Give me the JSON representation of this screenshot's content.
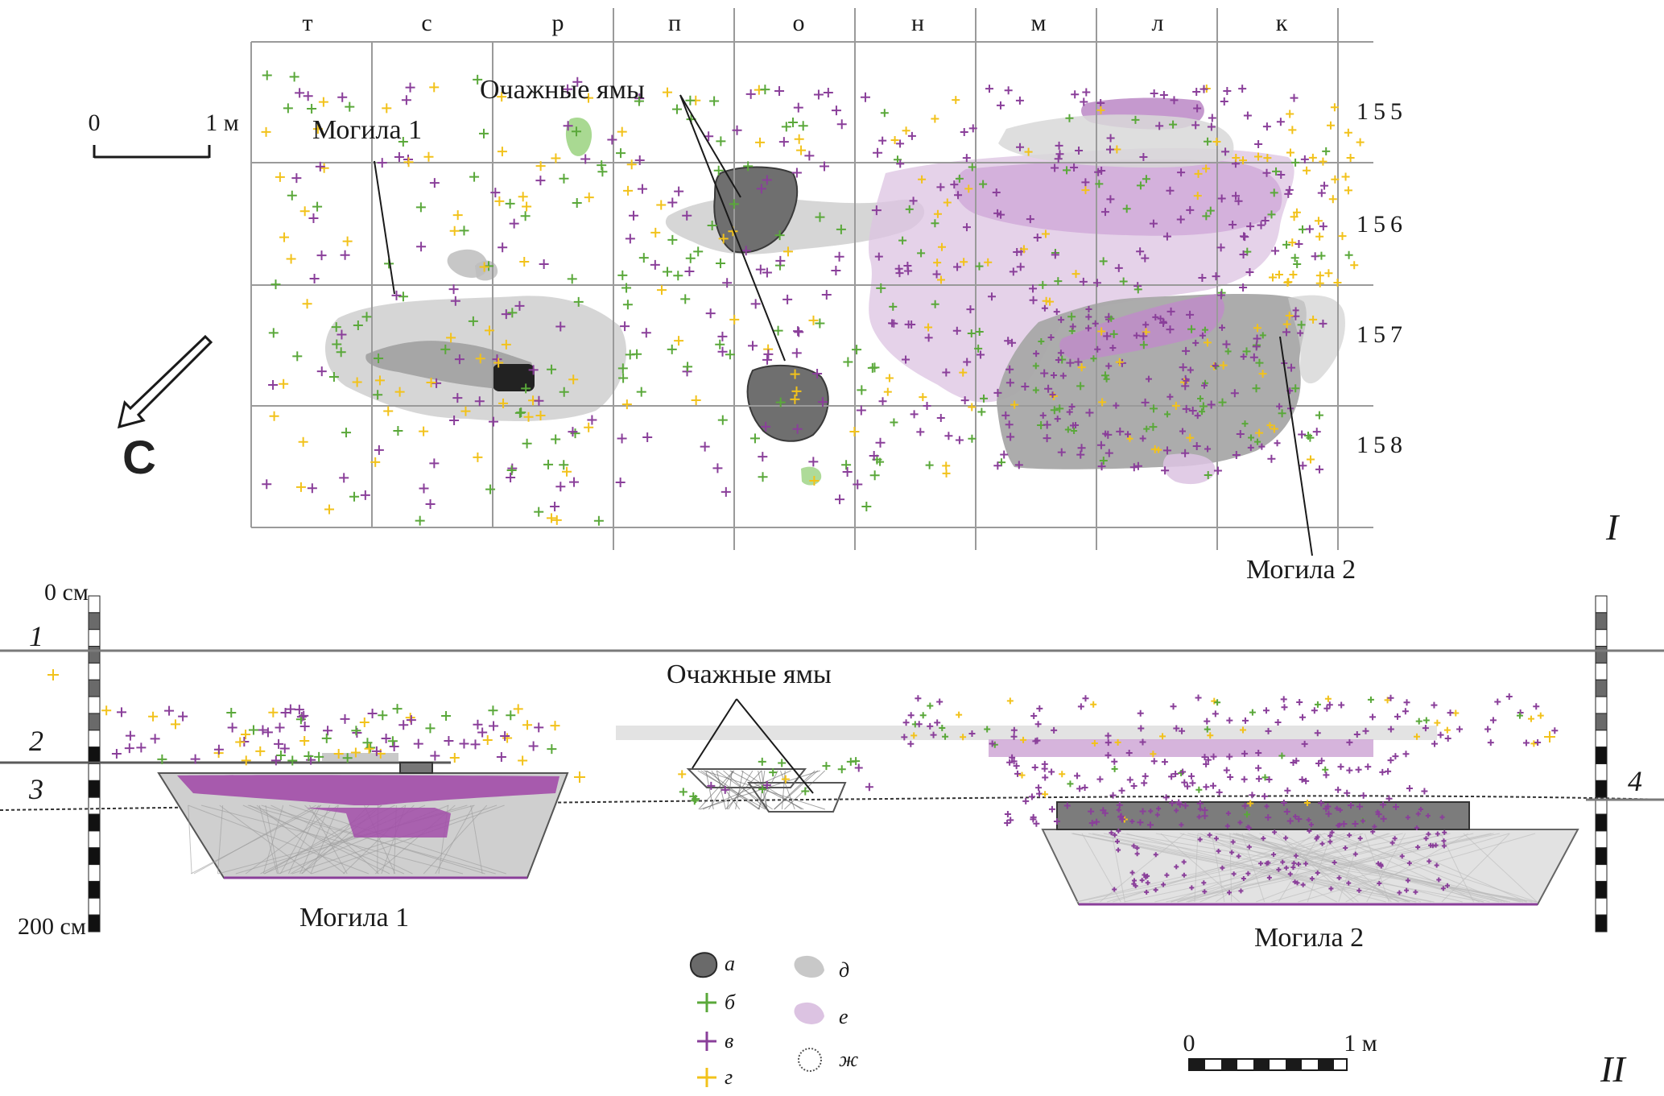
{
  "plan": {
    "panel_label": "I",
    "column_letters": [
      "т",
      "с",
      "р",
      "п",
      "о",
      "н",
      "м",
      "л",
      "к"
    ],
    "row_numbers": [
      "155",
      "156",
      "157",
      "158"
    ],
    "scale": {
      "zero": "0",
      "end": "1 м"
    },
    "north_label": "С",
    "labels": {
      "grave1": "Могила 1",
      "grave2": "Могила 2",
      "hearths": "Очажные ямы"
    }
  },
  "section": {
    "panel_label": "II",
    "depth_top": "0 см",
    "depth_bottom": "200 см",
    "layer_numbers": [
      "1",
      "2",
      "3",
      "4"
    ],
    "labels": {
      "grave1": "Могила 1",
      "grave2": "Могила 2",
      "hearths": "Очажные ямы"
    },
    "scale": {
      "zero": "0",
      "end": "1 м"
    }
  },
  "legend": [
    {
      "key": "а",
      "icon": "dark-hatched-blob-icon"
    },
    {
      "key": "б",
      "icon": "green-cross-icon",
      "color": "#5aa83a"
    },
    {
      "key": "в",
      "icon": "purple-cross-icon",
      "color": "#8a3f9a"
    },
    {
      "key": "г",
      "icon": "yellow-cross-icon",
      "color": "#f2c21b"
    },
    {
      "key": "д",
      "icon": "grey-blob-icon",
      "color": "#c8c8c8"
    },
    {
      "key": "е",
      "icon": "light-purple-blob-icon",
      "color": "#dcc3e2"
    },
    {
      "key": "ж",
      "icon": "dotted-circle-icon"
    }
  ],
  "colors": {
    "green": "#5aa83a",
    "purple": "#8a3f9a",
    "yellow": "#f2c21b",
    "grey_fill": "#cfcfcf",
    "dark_grey": "#8c8c8c",
    "light_purple": "#dcc3e2",
    "magenta": "#9b4aa3"
  }
}
